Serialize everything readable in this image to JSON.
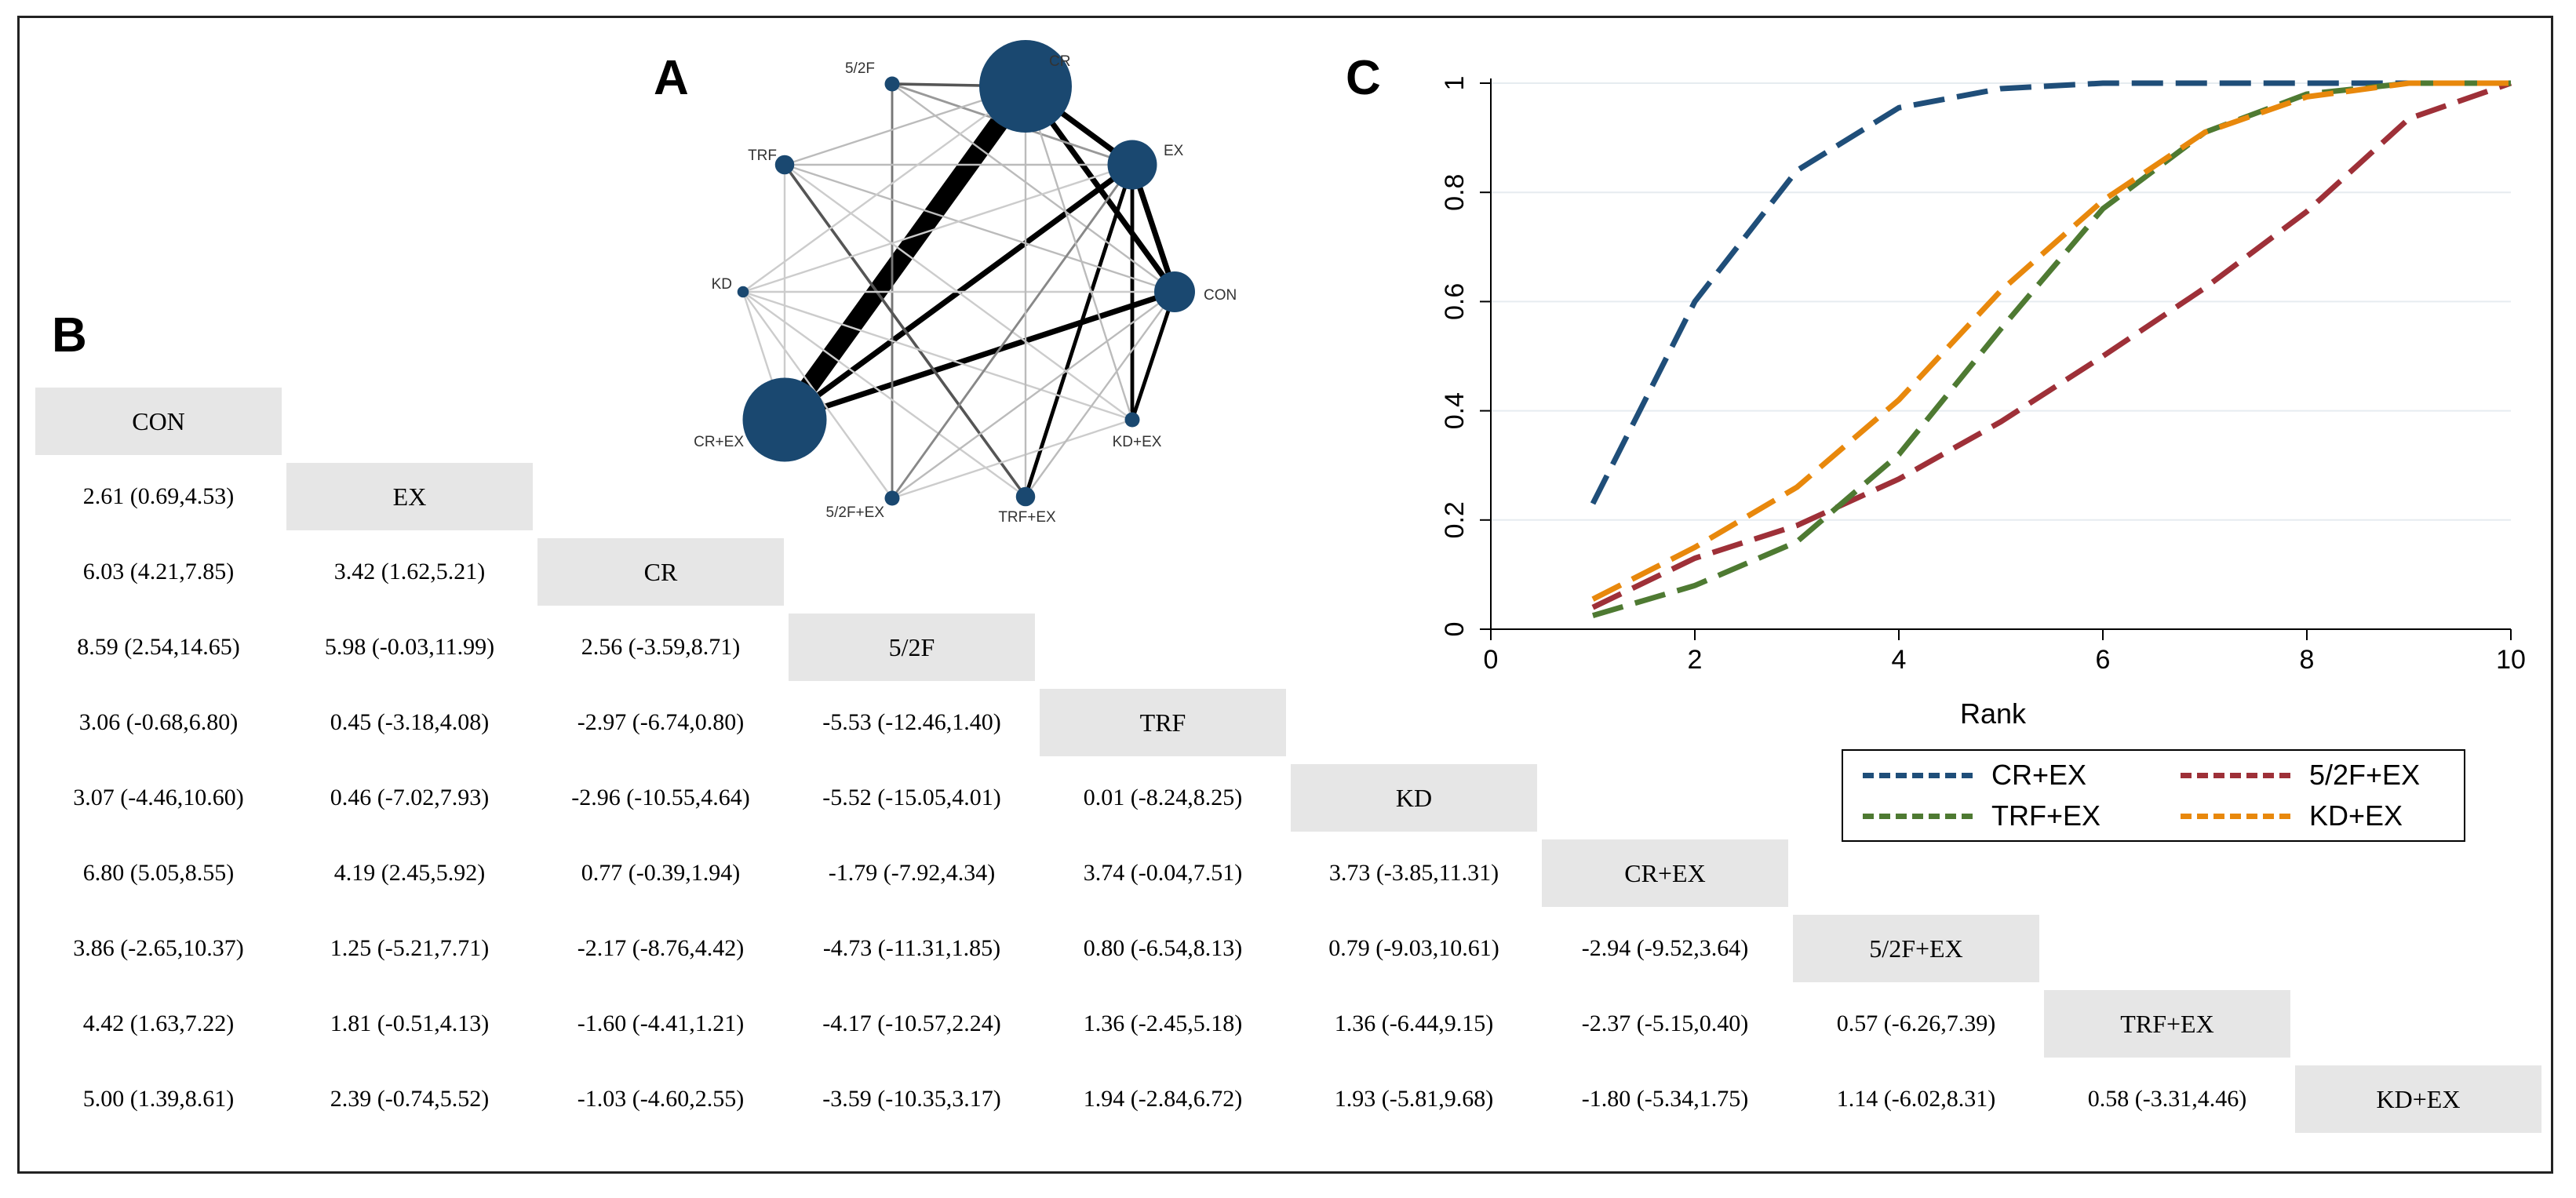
{
  "panels": {
    "a": "A",
    "b": "B",
    "c": "C"
  },
  "network": {
    "node_color": "#1a4870",
    "nodes": [
      {
        "label": "5/2F",
        "size": 1
      },
      {
        "label": "CR",
        "size": 10
      },
      {
        "label": "EX",
        "size": 5
      },
      {
        "label": "CON",
        "size": 4
      },
      {
        "label": "KD+EX",
        "size": 1
      },
      {
        "label": "TRF+EX",
        "size": 1.5
      },
      {
        "label": "5/2F+EX",
        "size": 1
      },
      {
        "label": "CR+EX",
        "size": 9
      },
      {
        "label": "KD",
        "size": 0.6
      },
      {
        "label": "TRF",
        "size": 1.5
      }
    ],
    "edges": [
      {
        "from": "CR",
        "to": "CR+EX",
        "weight": 10,
        "color": "#000000"
      },
      {
        "from": "CR",
        "to": "EX",
        "weight": 3,
        "color": "#000000"
      },
      {
        "from": "CR",
        "to": "CON",
        "weight": 3,
        "color": "#000000"
      },
      {
        "from": "EX",
        "to": "CON",
        "weight": 3,
        "color": "#000000"
      },
      {
        "from": "EX",
        "to": "CR+EX",
        "weight": 3,
        "color": "#000000"
      },
      {
        "from": "CON",
        "to": "CR+EX",
        "weight": 3,
        "color": "#000000"
      },
      {
        "from": "CON",
        "to": "KD+EX",
        "weight": 2,
        "color": "#000000"
      },
      {
        "from": "EX",
        "to": "TRF+EX",
        "weight": 2,
        "color": "#000000"
      },
      {
        "from": "EX",
        "to": "KD+EX",
        "weight": 2,
        "color": "#000000"
      },
      {
        "from": "5/2F",
        "to": "CR",
        "weight": 1.5,
        "color": "#555555"
      },
      {
        "from": "5/2F",
        "to": "5/2F+EX",
        "weight": 1.2,
        "color": "#777777"
      },
      {
        "from": "5/2F",
        "to": "EX",
        "weight": 1.2,
        "color": "#999999"
      },
      {
        "from": "5/2F",
        "to": "CON",
        "weight": 1,
        "color": "#bbbbbb"
      },
      {
        "from": "TRF",
        "to": "TRF+EX",
        "weight": 1.5,
        "color": "#555555"
      },
      {
        "from": "TRF",
        "to": "CR",
        "weight": 1,
        "color": "#bbbbbb"
      },
      {
        "from": "TRF",
        "to": "EX",
        "weight": 1,
        "color": "#bbbbbb"
      },
      {
        "from": "TRF",
        "to": "CON",
        "weight": 1,
        "color": "#bbbbbb"
      },
      {
        "from": "TRF",
        "to": "KD+EX",
        "weight": 1,
        "color": "#cccccc"
      },
      {
        "from": "KD",
        "to": "CR",
        "weight": 1,
        "color": "#cccccc"
      },
      {
        "from": "KD",
        "to": "EX",
        "weight": 1,
        "color": "#cccccc"
      },
      {
        "from": "KD",
        "to": "CON",
        "weight": 1,
        "color": "#cccccc"
      },
      {
        "from": "KD",
        "to": "KD+EX",
        "weight": 1,
        "color": "#cccccc"
      },
      {
        "from": "KD",
        "to": "5/2F+EX",
        "weight": 1,
        "color": "#cccccc"
      },
      {
        "from": "KD",
        "to": "TRF+EX",
        "weight": 1,
        "color": "#cccccc"
      },
      {
        "from": "5/2F+EX",
        "to": "EX",
        "weight": 1.2,
        "color": "#888888"
      },
      {
        "from": "5/2F+EX",
        "to": "CON",
        "weight": 1,
        "color": "#bbbbbb"
      },
      {
        "from": "5/2F+EX",
        "to": "KD+EX",
        "weight": 1,
        "color": "#cccccc"
      },
      {
        "from": "TRF+EX",
        "to": "CON",
        "weight": 1,
        "color": "#bbbbbb"
      },
      {
        "from": "TRF+EX",
        "to": "CR",
        "weight": 1,
        "color": "#bbbbbb"
      },
      {
        "from": "CR+EX",
        "to": "TRF",
        "weight": 1,
        "color": "#cccccc"
      },
      {
        "from": "CR+EX",
        "to": "KD",
        "weight": 1,
        "color": "#cccccc"
      },
      {
        "from": "KD+EX",
        "to": "CR",
        "weight": 1,
        "color": "#bbbbbb"
      }
    ]
  },
  "league_table": {
    "treatments": [
      "CON",
      "EX",
      "CR",
      "5/2F",
      "TRF",
      "KD",
      "CR+EX",
      "5/2F+EX",
      "TRF+EX",
      "KD+EX"
    ],
    "rows": [
      [],
      [
        "2.61 (0.69,4.53)"
      ],
      [
        "6.03 (4.21,7.85)",
        "3.42 (1.62,5.21)"
      ],
      [
        "8.59 (2.54,14.65)",
        "5.98 (-0.03,11.99)",
        "2.56 (-3.59,8.71)"
      ],
      [
        "3.06 (-0.68,6.80)",
        "0.45 (-3.18,4.08)",
        "-2.97 (-6.74,0.80)",
        "-5.53 (-12.46,1.40)"
      ],
      [
        "3.07 (-4.46,10.60)",
        "0.46 (-7.02,7.93)",
        "-2.96 (-10.55,4.64)",
        "-5.52 (-15.05,4.01)",
        "0.01 (-8.24,8.25)"
      ],
      [
        "6.80 (5.05,8.55)",
        "4.19 (2.45,5.92)",
        "0.77 (-0.39,1.94)",
        "-1.79 (-7.92,4.34)",
        "3.74 (-0.04,7.51)",
        "3.73 (-3.85,11.31)"
      ],
      [
        "3.86 (-2.65,10.37)",
        "1.25 (-5.21,7.71)",
        "-2.17 (-8.76,4.42)",
        "-4.73 (-11.31,1.85)",
        "0.80 (-6.54,8.13)",
        "0.79 (-9.03,10.61)",
        "-2.94 (-9.52,3.64)"
      ],
      [
        "4.42 (1.63,7.22)",
        "1.81 (-0.51,4.13)",
        "-1.60 (-4.41,1.21)",
        "-4.17 (-10.57,2.24)",
        "1.36 (-2.45,5.18)",
        "1.36 (-6.44,9.15)",
        "-2.37 (-5.15,0.40)",
        "0.57 (-6.26,7.39)"
      ],
      [
        "5.00 (1.39,8.61)",
        "2.39 (-0.74,5.52)",
        "-1.03 (-4.60,2.55)",
        "-3.59 (-10.35,3.17)",
        "1.94 (-2.84,6.72)",
        "1.93 (-5.81,9.68)",
        "-1.80 (-5.34,1.75)",
        "1.14 (-6.02,8.31)",
        "0.58 (-3.31,4.46)"
      ]
    ]
  },
  "chart_data": {
    "type": "line",
    "title": "",
    "xlabel": "Rank",
    "ylabel": "",
    "xlim": [
      0,
      10
    ],
    "ylim": [
      0,
      1
    ],
    "xticks": [
      0,
      2,
      4,
      6,
      8,
      10
    ],
    "yticks": [
      0,
      0.2,
      0.4,
      0.6,
      0.8,
      1
    ],
    "ytick_labels": [
      "0",
      "0.2",
      "0.4",
      "0.6",
      "0.8",
      "1"
    ],
    "grid": "horizontal",
    "legend_position": "bottom",
    "x": [
      1,
      2,
      3,
      4,
      5,
      6,
      7,
      8,
      9,
      10
    ],
    "series": [
      {
        "name": "CR+EX",
        "color": "#1f4e79",
        "values": [
          0.23,
          0.6,
          0.84,
          0.955,
          0.99,
          1.0,
          1.0,
          1.0,
          1.0,
          1.0
        ]
      },
      {
        "name": "5/2F+EX",
        "color": "#9e3038",
        "values": [
          0.04,
          0.13,
          0.19,
          0.275,
          0.38,
          0.5,
          0.625,
          0.765,
          0.935,
          1.0
        ]
      },
      {
        "name": "TRF+EX",
        "color": "#4e7a32",
        "values": [
          0.025,
          0.08,
          0.16,
          0.32,
          0.55,
          0.77,
          0.91,
          0.98,
          1.0,
          1.0
        ]
      },
      {
        "name": "KD+EX",
        "color": "#e8880c",
        "values": [
          0.055,
          0.15,
          0.26,
          0.42,
          0.62,
          0.785,
          0.91,
          0.975,
          1.0,
          1.0
        ]
      }
    ],
    "legend_order": [
      "CR+EX",
      "5/2F+EX",
      "TRF+EX",
      "KD+EX"
    ]
  }
}
